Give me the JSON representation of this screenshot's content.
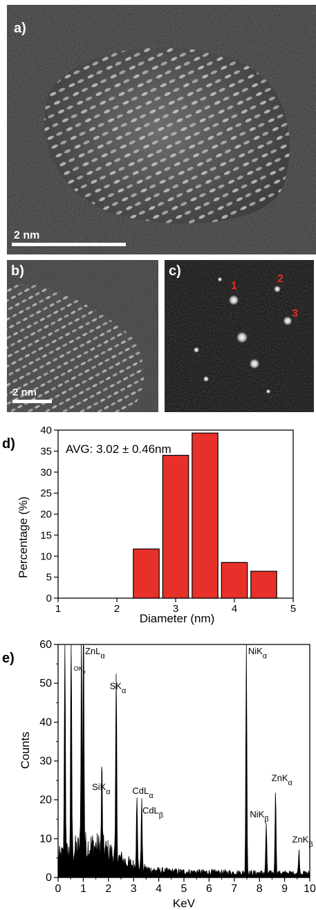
{
  "figure": {
    "panel_a": {
      "label": "a)",
      "scale_bar": "2 nm"
    },
    "panel_b": {
      "label": "b)",
      "scale_bar": "2 nm"
    },
    "panel_c": {
      "label": "c)",
      "spots": [
        "1",
        "2",
        "3"
      ]
    },
    "panel_d": {
      "label": "d)",
      "annotation": "AVG: 3.02 ± 0.46nm"
    },
    "panel_e": {
      "label": "e)"
    }
  },
  "chart_data": [
    {
      "type": "bar",
      "panel": "d",
      "xlabel": "Diameter (nm)",
      "ylabel": "Percentage (%)",
      "xlim": [
        1,
        5
      ],
      "ylim": [
        0,
        40
      ],
      "xticks": [
        "1",
        "2",
        "3",
        "4",
        "5"
      ],
      "yticks": [
        "0",
        "5",
        "10",
        "15",
        "20",
        "25",
        "30",
        "35",
        "40"
      ],
      "bar_width": 0.44,
      "x": [
        2.5,
        3.0,
        3.5,
        4.0,
        4.5
      ],
      "values": [
        11.7,
        34.0,
        39.3,
        8.5,
        6.4
      ],
      "color": "#e8302a",
      "annotation": "AVG: 3.02 ± 0.46nm"
    },
    {
      "type": "line",
      "panel": "e",
      "xlabel": "KeV",
      "ylabel": "Counts",
      "xlim": [
        0,
        10
      ],
      "ylim": [
        0,
        60
      ],
      "xticks": [
        "0",
        "1",
        "2",
        "3",
        "4",
        "5",
        "6",
        "7",
        "8",
        "9",
        "10"
      ],
      "yticks": [
        "0",
        "10",
        "20",
        "30",
        "40",
        "50",
        "60"
      ],
      "peaks": [
        {
          "x": 0.27,
          "y": 60
        },
        {
          "x": 0.52,
          "y": 60
        },
        {
          "x": 0.93,
          "y": 55
        },
        {
          "x": 1.01,
          "y": 60
        },
        {
          "x": 1.74,
          "y": 21
        },
        {
          "x": 2.31,
          "y": 47
        },
        {
          "x": 3.13,
          "y": 19.5
        },
        {
          "x": 3.32,
          "y": 18
        },
        {
          "x": 7.48,
          "y": 60
        },
        {
          "x": 8.27,
          "y": 13
        },
        {
          "x": 8.64,
          "y": 22
        },
        {
          "x": 9.57,
          "y": 6
        }
      ],
      "labels": [
        {
          "x": 1.07,
          "y": 57.5,
          "text": "ZnL",
          "sub": "α"
        },
        {
          "x": 0.62,
          "y": 53.2,
          "text": "OK",
          "sub": "α",
          "small": true
        },
        {
          "x": 2.05,
          "y": 48.5,
          "text": "SK",
          "sub": "α"
        },
        {
          "x": 1.35,
          "y": 22.5,
          "text": "SiK",
          "sub": "α"
        },
        {
          "x": 2.95,
          "y": 21.5,
          "text": "CdL",
          "sub": "α"
        },
        {
          "x": 3.35,
          "y": 16.5,
          "text": "CdL",
          "sub": "β"
        },
        {
          "x": 7.55,
          "y": 57.5,
          "text": "NiK",
          "sub": "α"
        },
        {
          "x": 7.62,
          "y": 15.5,
          "text": "NiK",
          "sub": "β"
        },
        {
          "x": 8.48,
          "y": 24.8,
          "text": "ZnK",
          "sub": "α"
        },
        {
          "x": 9.3,
          "y": 9,
          "text": "ZnK",
          "sub": "β"
        }
      ]
    }
  ]
}
